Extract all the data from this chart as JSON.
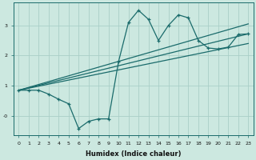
{
  "xlabel": "Humidex (Indice chaleur)",
  "bg_color": "#cce8e0",
  "line_color": "#1a6b6b",
  "grid_color": "#aacfc8",
  "x_data": [
    0,
    1,
    2,
    3,
    4,
    5,
    6,
    7,
    8,
    9,
    10,
    11,
    12,
    13,
    14,
    15,
    16,
    17,
    18,
    19,
    20,
    21,
    22,
    23
  ],
  "y_main": [
    0.85,
    0.85,
    0.85,
    0.72,
    0.55,
    0.4,
    -0.42,
    -0.18,
    -0.1,
    -0.1,
    1.8,
    3.1,
    3.5,
    3.2,
    2.5,
    3.0,
    3.35,
    3.25,
    2.5,
    2.25,
    2.22,
    2.28,
    2.7,
    2.72
  ],
  "line1_x": [
    0,
    23
  ],
  "line1_y": [
    0.85,
    2.72
  ],
  "line2_x": [
    0,
    23
  ],
  "line2_y": [
    0.85,
    2.4
  ],
  "line3_x": [
    0,
    23
  ],
  "line3_y": [
    0.85,
    3.05
  ],
  "ylim": [
    -0.65,
    3.75
  ],
  "xlim": [
    -0.5,
    23.5
  ],
  "yticks": [
    0,
    1,
    2,
    3
  ],
  "ytick_labels": [
    "-0",
    "1",
    "2",
    "3"
  ],
  "xticks": [
    0,
    1,
    2,
    3,
    4,
    5,
    6,
    7,
    8,
    9,
    10,
    11,
    12,
    13,
    14,
    15,
    16,
    17,
    18,
    19,
    20,
    21,
    22,
    23
  ],
  "figsize": [
    3.2,
    2.0
  ],
  "dpi": 100
}
